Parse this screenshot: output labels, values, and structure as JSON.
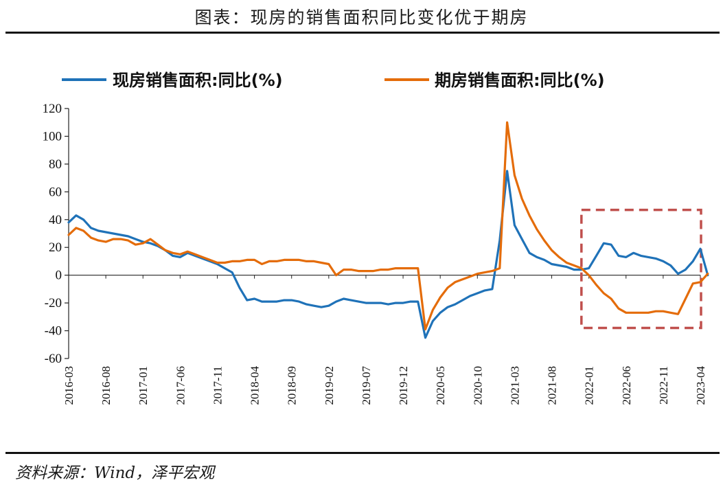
{
  "title": "图表：现房的销售面积同比变化优于期房",
  "source": "资料来源：Wind，泽平宏观",
  "colors": {
    "series1": "#1f72b8",
    "series2": "#e46c0a",
    "highlight_box": "#c0504d",
    "axis": "#222222"
  },
  "chart_data": {
    "type": "line",
    "ylim": [
      -60,
      120
    ],
    "yticks": [
      120,
      100,
      80,
      60,
      40,
      20,
      0,
      -20,
      -40,
      -60
    ],
    "x_start": "2016-03",
    "x_end": "2023-04",
    "xticks": [
      "2016-03",
      "2016-08",
      "2017-01",
      "2017-06",
      "2017-11",
      "2018-04",
      "2018-09",
      "2019-02",
      "2019-07",
      "2019-12",
      "2020-05",
      "2020-10",
      "2021-03",
      "2021-08",
      "2022-01",
      "2022-06",
      "2022-11",
      "2023-04"
    ],
    "legend_position": "top",
    "highlight": {
      "x_from": "2021-12",
      "x_to": "2023-04",
      "y_from": -38,
      "y_to": 47
    },
    "series": [
      {
        "name": "现房销售面积:同比(%)",
        "color": "#1f72b8",
        "points": [
          [
            "2016-03",
            38
          ],
          [
            "2016-04",
            43
          ],
          [
            "2016-05",
            40
          ],
          [
            "2016-06",
            34
          ],
          [
            "2016-07",
            32
          ],
          [
            "2016-08",
            31
          ],
          [
            "2016-09",
            30
          ],
          [
            "2016-10",
            29
          ],
          [
            "2016-11",
            28
          ],
          [
            "2016-12",
            26
          ],
          [
            "2017-01",
            24
          ],
          [
            "2017-02",
            23
          ],
          [
            "2017-03",
            21
          ],
          [
            "2017-04",
            18
          ],
          [
            "2017-05",
            14
          ],
          [
            "2017-06",
            13
          ],
          [
            "2017-07",
            16
          ],
          [
            "2017-08",
            14
          ],
          [
            "2017-09",
            12
          ],
          [
            "2017-10",
            10
          ],
          [
            "2017-11",
            8
          ],
          [
            "2017-12",
            5
          ],
          [
            "2018-01",
            2
          ],
          [
            "2018-02",
            -9
          ],
          [
            "2018-03",
            -18
          ],
          [
            "2018-04",
            -17
          ],
          [
            "2018-05",
            -19
          ],
          [
            "2018-06",
            -19
          ],
          [
            "2018-07",
            -19
          ],
          [
            "2018-08",
            -18
          ],
          [
            "2018-09",
            -18
          ],
          [
            "2018-10",
            -19
          ],
          [
            "2018-11",
            -21
          ],
          [
            "2018-12",
            -22
          ],
          [
            "2019-01",
            -23
          ],
          [
            "2019-02",
            -22
          ],
          [
            "2019-03",
            -19
          ],
          [
            "2019-04",
            -17
          ],
          [
            "2019-05",
            -18
          ],
          [
            "2019-06",
            -19
          ],
          [
            "2019-07",
            -20
          ],
          [
            "2019-08",
            -20
          ],
          [
            "2019-09",
            -20
          ],
          [
            "2019-10",
            -21
          ],
          [
            "2019-11",
            -20
          ],
          [
            "2019-12",
            -20
          ],
          [
            "2020-01",
            -19
          ],
          [
            "2020-02",
            -19
          ],
          [
            "2020-03",
            -45
          ],
          [
            "2020-04",
            -33
          ],
          [
            "2020-05",
            -27
          ],
          [
            "2020-06",
            -23
          ],
          [
            "2020-07",
            -21
          ],
          [
            "2020-08",
            -18
          ],
          [
            "2020-09",
            -15
          ],
          [
            "2020-10",
            -13
          ],
          [
            "2020-11",
            -11
          ],
          [
            "2020-12",
            -10
          ],
          [
            "2021-01",
            25
          ],
          [
            "2021-02",
            75
          ],
          [
            "2021-03",
            36
          ],
          [
            "2021-04",
            26
          ],
          [
            "2021-05",
            16
          ],
          [
            "2021-06",
            13
          ],
          [
            "2021-07",
            11
          ],
          [
            "2021-08",
            8
          ],
          [
            "2021-09",
            7
          ],
          [
            "2021-10",
            6
          ],
          [
            "2021-11",
            4
          ],
          [
            "2021-12",
            4
          ],
          [
            "2022-01",
            5
          ],
          [
            "2022-02",
            14
          ],
          [
            "2022-03",
            23
          ],
          [
            "2022-04",
            22
          ],
          [
            "2022-05",
            14
          ],
          [
            "2022-06",
            13
          ],
          [
            "2022-07",
            16
          ],
          [
            "2022-08",
            14
          ],
          [
            "2022-09",
            13
          ],
          [
            "2022-10",
            12
          ],
          [
            "2022-11",
            10
          ],
          [
            "2022-12",
            7
          ],
          [
            "2023-01",
            1
          ],
          [
            "2023-02",
            4
          ],
          [
            "2023-03",
            10
          ],
          [
            "2023-04",
            19
          ],
          [
            "2023-05",
            0
          ]
        ]
      },
      {
        "name": "期房销售面积:同比(%)",
        "color": "#e46c0a",
        "points": [
          [
            "2016-03",
            29
          ],
          [
            "2016-04",
            34
          ],
          [
            "2016-05",
            32
          ],
          [
            "2016-06",
            27
          ],
          [
            "2016-07",
            25
          ],
          [
            "2016-08",
            24
          ],
          [
            "2016-09",
            26
          ],
          [
            "2016-10",
            26
          ],
          [
            "2016-11",
            25
          ],
          [
            "2016-12",
            22
          ],
          [
            "2017-01",
            23
          ],
          [
            "2017-02",
            26
          ],
          [
            "2017-03",
            22
          ],
          [
            "2017-04",
            18
          ],
          [
            "2017-05",
            16
          ],
          [
            "2017-06",
            15
          ],
          [
            "2017-07",
            17
          ],
          [
            "2017-08",
            15
          ],
          [
            "2017-09",
            13
          ],
          [
            "2017-10",
            11
          ],
          [
            "2017-11",
            9
          ],
          [
            "2017-12",
            9
          ],
          [
            "2018-01",
            10
          ],
          [
            "2018-02",
            10
          ],
          [
            "2018-03",
            11
          ],
          [
            "2018-04",
            11
          ],
          [
            "2018-05",
            8
          ],
          [
            "2018-06",
            10
          ],
          [
            "2018-07",
            10
          ],
          [
            "2018-08",
            11
          ],
          [
            "2018-09",
            11
          ],
          [
            "2018-10",
            11
          ],
          [
            "2018-11",
            10
          ],
          [
            "2018-12",
            10
          ],
          [
            "2019-01",
            9
          ],
          [
            "2019-02",
            8
          ],
          [
            "2019-03",
            0
          ],
          [
            "2019-04",
            4
          ],
          [
            "2019-05",
            4
          ],
          [
            "2019-06",
            3
          ],
          [
            "2019-07",
            3
          ],
          [
            "2019-08",
            3
          ],
          [
            "2019-09",
            4
          ],
          [
            "2019-10",
            4
          ],
          [
            "2019-11",
            5
          ],
          [
            "2019-12",
            5
          ],
          [
            "2020-01",
            5
          ],
          [
            "2020-02",
            5
          ],
          [
            "2020-03",
            -39
          ],
          [
            "2020-04",
            -25
          ],
          [
            "2020-05",
            -16
          ],
          [
            "2020-06",
            -9
          ],
          [
            "2020-07",
            -5
          ],
          [
            "2020-08",
            -3
          ],
          [
            "2020-09",
            -1
          ],
          [
            "2020-10",
            1
          ],
          [
            "2020-11",
            2
          ],
          [
            "2020-12",
            3
          ],
          [
            "2021-01",
            5
          ],
          [
            "2021-02",
            110
          ],
          [
            "2021-03",
            72
          ],
          [
            "2021-04",
            55
          ],
          [
            "2021-05",
            43
          ],
          [
            "2021-06",
            33
          ],
          [
            "2021-07",
            25
          ],
          [
            "2021-08",
            18
          ],
          [
            "2021-09",
            13
          ],
          [
            "2021-10",
            9
          ],
          [
            "2021-11",
            7
          ],
          [
            "2021-12",
            5
          ],
          [
            "2022-01",
            0
          ],
          [
            "2022-02",
            -7
          ],
          [
            "2022-03",
            -13
          ],
          [
            "2022-04",
            -17
          ],
          [
            "2022-05",
            -24
          ],
          [
            "2022-06",
            -27
          ],
          [
            "2022-07",
            -27
          ],
          [
            "2022-08",
            -27
          ],
          [
            "2022-09",
            -27
          ],
          [
            "2022-10",
            -26
          ],
          [
            "2022-11",
            -26
          ],
          [
            "2022-12",
            -27
          ],
          [
            "2023-01",
            -28
          ],
          [
            "2023-02",
            -17
          ],
          [
            "2023-03",
            -6
          ],
          [
            "2023-04",
            -5
          ],
          [
            "2023-05",
            1
          ]
        ]
      }
    ]
  }
}
